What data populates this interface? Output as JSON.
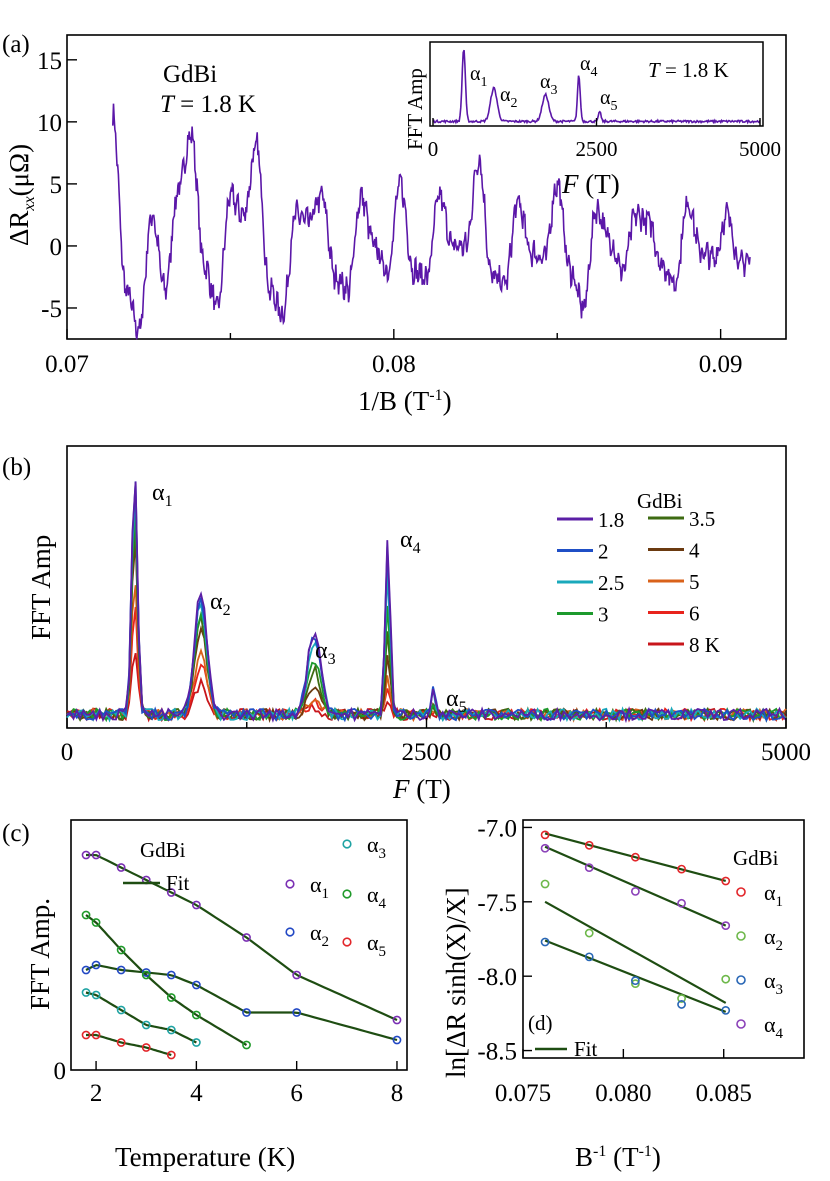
{
  "panel_a": {
    "label": "(a)",
    "material": "GdBi",
    "temperature_prefix": "T",
    "temperature_value": " = 1.8 K",
    "xlabel": "1/B (T",
    "xlabel_sup": "-1",
    "xlabel_end": ")",
    "ylabel_main": "ΔR",
    "ylabel_sub": "xx",
    "ylabel_unit": "(μΩ)",
    "inset": {
      "ylabel": "FFT Amp",
      "temperature_prefix": "T",
      "temperature_value": " = 1.8 K",
      "xlabel_italic": "F",
      "xlabel_rest": " (T)",
      "peaks": [
        "α",
        "α",
        "α",
        "α",
        "α"
      ],
      "peak_subs": [
        "1",
        "2",
        "3",
        "4",
        "5"
      ]
    }
  },
  "panel_b": {
    "label": "(b)",
    "ylabel": "FFT Amp",
    "xlabel_italic": "F",
    "xlabel_rest": " (T)",
    "legend_title": "GdBi",
    "peaks": [
      "α",
      "α",
      "α",
      "α",
      "α"
    ],
    "peak_subs": [
      "1",
      "2",
      "3",
      "4",
      "5"
    ]
  },
  "panel_c": {
    "label": "(c)",
    "material": "GdBi",
    "fit_label": "Fit",
    "ylabel": "FFT Amp.",
    "xlabel": "Temperature (K)",
    "legend_symbols": [
      "α",
      "α",
      "α",
      "α",
      "α"
    ],
    "legend_subs": [
      "1",
      "2",
      "3",
      "4",
      "5"
    ]
  },
  "panel_d": {
    "label": "(d)",
    "material": "GdBi",
    "fit_label": "Fit",
    "ylabel": "ln[ΔR sinh(X)/X]",
    "xlabel": "B",
    "xlabel_sup": "-1",
    "xlabel_end": " (T",
    "xlabel_sup2": "-1",
    "xlabel_end2": ")",
    "legend_symbols": [
      "α",
      "α",
      "α",
      "α"
    ],
    "legend_subs": [
      "1",
      "2",
      "3",
      "4"
    ]
  },
  "chart_data": [
    {
      "type": "line",
      "panel": "a",
      "xlim": [
        0.07,
        0.092
      ],
      "ylim": [
        -7.5,
        17
      ],
      "xticks": [
        0.07,
        0.08,
        0.09
      ],
      "xtick_labels": [
        "0.07",
        "0.08",
        "0.09"
      ],
      "yticks": [
        -5,
        0,
        5,
        10,
        15
      ],
      "ytick_labels": [
        "-5",
        "0",
        "5",
        "10",
        "15"
      ],
      "color": "#5b17a8",
      "x_range": [
        0.0714,
        0.0909
      ],
      "description_points": {
        "x": [
          0.0714,
          0.0718,
          0.0722,
          0.0726,
          0.073,
          0.0734,
          0.0738,
          0.0742,
          0.0746,
          0.075,
          0.0754,
          0.0758,
          0.0762,
          0.0766,
          0.077,
          0.0774,
          0.0778,
          0.0782,
          0.0786,
          0.079,
          0.0794,
          0.0798,
          0.0802,
          0.0806,
          0.081,
          0.0814,
          0.0818,
          0.0822,
          0.0826,
          0.083,
          0.0834,
          0.0838,
          0.0842,
          0.0846,
          0.085,
          0.0854,
          0.0858,
          0.0862,
          0.0866,
          0.087,
          0.0874,
          0.0878,
          0.0882,
          0.0886,
          0.089,
          0.0894,
          0.0898,
          0.0902,
          0.0906,
          0.0909
        ],
        "y": [
          10.5,
          -3.5,
          -6.8,
          2.5,
          -3.5,
          4.5,
          9,
          -1.5,
          -5,
          4,
          2.5,
          8,
          -3.5,
          -5.5,
          2.5,
          2,
          4,
          -2.5,
          -3.5,
          4,
          0,
          -2,
          5,
          -2,
          -2.5,
          4,
          0,
          0,
          7,
          -2.5,
          -3,
          3.5,
          -0.5,
          -1,
          5,
          -2,
          -5,
          3,
          0.5,
          -2,
          2.5,
          2,
          -1.5,
          -3,
          3.5,
          -0.5,
          -1,
          2.5,
          -1.5,
          -1
        ]
      }
    },
    {
      "type": "line",
      "panel": "a-inset",
      "xlim": [
        0,
        5000
      ],
      "xticks": [
        0,
        2500,
        5000
      ],
      "xtick_labels": [
        "0",
        "2500",
        "5000"
      ],
      "color": "#5b17a8",
      "peaks_F": [
        470,
        930,
        1720,
        2230,
        2550
      ]
    },
    {
      "type": "line",
      "panel": "b",
      "xlim": [
        0,
        5000
      ],
      "xticks": [
        0,
        2500,
        5000
      ],
      "xtick_labels": [
        "0",
        "2500",
        "5000"
      ],
      "peaks_F": [
        470,
        930,
        1720,
        2230,
        2550
      ],
      "series": [
        {
          "name": "1.8",
          "color": "#5b1fa6",
          "peak_heights": [
            1.0,
            0.48,
            0.33,
            0.7,
            0.13
          ]
        },
        {
          "name": "2",
          "color": "#1f4fc6",
          "peak_heights": [
            0.96,
            0.47,
            0.32,
            0.69,
            0.12
          ]
        },
        {
          "name": "2.5",
          "color": "#19a9bb",
          "peak_heights": [
            0.91,
            0.44,
            0.28,
            0.58,
            0.09
          ]
        },
        {
          "name": "3",
          "color": "#1d9a2d",
          "peak_heights": [
            0.86,
            0.41,
            0.22,
            0.45,
            0.06
          ]
        },
        {
          "name": "3.5",
          "color": "#3e6b12",
          "peak_heights": [
            0.8,
            0.38,
            0.17,
            0.33,
            0.04
          ]
        },
        {
          "name": "4",
          "color": "#6b3a10",
          "peak_heights": [
            0.73,
            0.34,
            0.12,
            0.24,
            0.03
          ]
        },
        {
          "name": "5",
          "color": "#d9621a",
          "peak_heights": [
            0.56,
            0.26,
            0.06,
            0.14,
            0.02
          ]
        },
        {
          "name": "6",
          "color": "#e8231c",
          "peak_heights": [
            0.43,
            0.2,
            0.04,
            0.09,
            0.02
          ]
        },
        {
          "name": "8 K",
          "color": "#c8161b",
          "peak_heights": [
            0.27,
            0.12,
            0.02,
            0.05,
            0.01
          ]
        }
      ]
    },
    {
      "type": "scatter",
      "panel": "c",
      "xlim": [
        1.5,
        8.2
      ],
      "ylim": [
        0,
        1.0
      ],
      "xticks": [
        2,
        4,
        6,
        8
      ],
      "xtick_labels": [
        "2",
        "4",
        "6",
        "8"
      ],
      "yticks": [
        0
      ],
      "ytick_labels": [
        "0"
      ],
      "series": [
        {
          "name": "α1",
          "color": "#7a2fb3",
          "x": [
            1.8,
            2,
            2.5,
            3,
            3.5,
            4,
            5,
            6,
            8
          ],
          "y": [
            0.86,
            0.86,
            0.81,
            0.76,
            0.71,
            0.66,
            0.53,
            0.38,
            0.2
          ]
        },
        {
          "name": "α2",
          "color": "#2248c4",
          "x": [
            1.8,
            2,
            2.5,
            3,
            3.5,
            4,
            5,
            6,
            8
          ],
          "y": [
            0.4,
            0.42,
            0.4,
            0.39,
            0.38,
            0.34,
            0.23,
            0.23,
            0.12
          ]
        },
        {
          "name": "α3",
          "color": "#1fa3a3",
          "x": [
            1.8,
            2,
            2.5,
            3,
            3.5,
            4
          ],
          "y": [
            0.31,
            0.3,
            0.24,
            0.18,
            0.16,
            0.11
          ]
        },
        {
          "name": "α4",
          "color": "#1f9a2a",
          "x": [
            1.8,
            2,
            2.5,
            3,
            3.5,
            4,
            5
          ],
          "y": [
            0.62,
            0.59,
            0.48,
            0.38,
            0.29,
            0.22,
            0.1
          ]
        },
        {
          "name": "α5",
          "color": "#e2262a",
          "x": [
            1.8,
            2,
            2.5,
            3,
            3.5
          ],
          "y": [
            0.14,
            0.14,
            0.11,
            0.09,
            0.06
          ]
        }
      ]
    },
    {
      "type": "scatter",
      "panel": "d",
      "xlim": [
        0.075,
        0.089
      ],
      "ylim": [
        -8.55,
        -6.95
      ],
      "xticks": [
        0.075,
        0.08,
        0.085
      ],
      "xtick_labels": [
        "0.075",
        "0.080",
        "0.085"
      ],
      "yticks": [
        -7.0,
        -7.5,
        -8.0,
        -8.5
      ],
      "ytick_labels": [
        "-7.0",
        "-7.5",
        "-8.0",
        "-8.5"
      ],
      "series": [
        {
          "name": "α1",
          "color": "#e2262a",
          "x": [
            0.0761,
            0.0783,
            0.0806,
            0.0829,
            0.0851
          ],
          "y": [
            -7.05,
            -7.12,
            -7.2,
            -7.28,
            -7.36
          ]
        },
        {
          "name": "α2",
          "color": "#6db84a",
          "x": [
            0.0761,
            0.0783,
            0.0806,
            0.0829,
            0.0851
          ],
          "y": [
            -7.38,
            -7.71,
            -8.05,
            -8.15,
            -8.02
          ]
        },
        {
          "name": "α3",
          "color": "#2866b5",
          "x": [
            0.0761,
            0.0783,
            0.0806,
            0.0829,
            0.0851
          ],
          "y": [
            -7.77,
            -7.87,
            -8.03,
            -8.19,
            -8.23
          ]
        },
        {
          "name": "α4",
          "color": "#8a40b8",
          "x": [
            0.0761,
            0.0783,
            0.0806,
            0.0829,
            0.0851
          ],
          "y": [
            -7.14,
            -7.27,
            -7.43,
            -7.51,
            -7.66
          ]
        }
      ],
      "fits": [
        {
          "x": [
            0.0761,
            0.0851
          ],
          "y": [
            -7.04,
            -7.36
          ]
        },
        {
          "x": [
            0.0761,
            0.0851
          ],
          "y": [
            -7.13,
            -7.66
          ]
        },
        {
          "x": [
            0.0761,
            0.0851
          ],
          "y": [
            -7.5,
            -8.18
          ]
        },
        {
          "x": [
            0.0761,
            0.0851
          ],
          "y": [
            -7.76,
            -8.24
          ]
        }
      ]
    }
  ]
}
